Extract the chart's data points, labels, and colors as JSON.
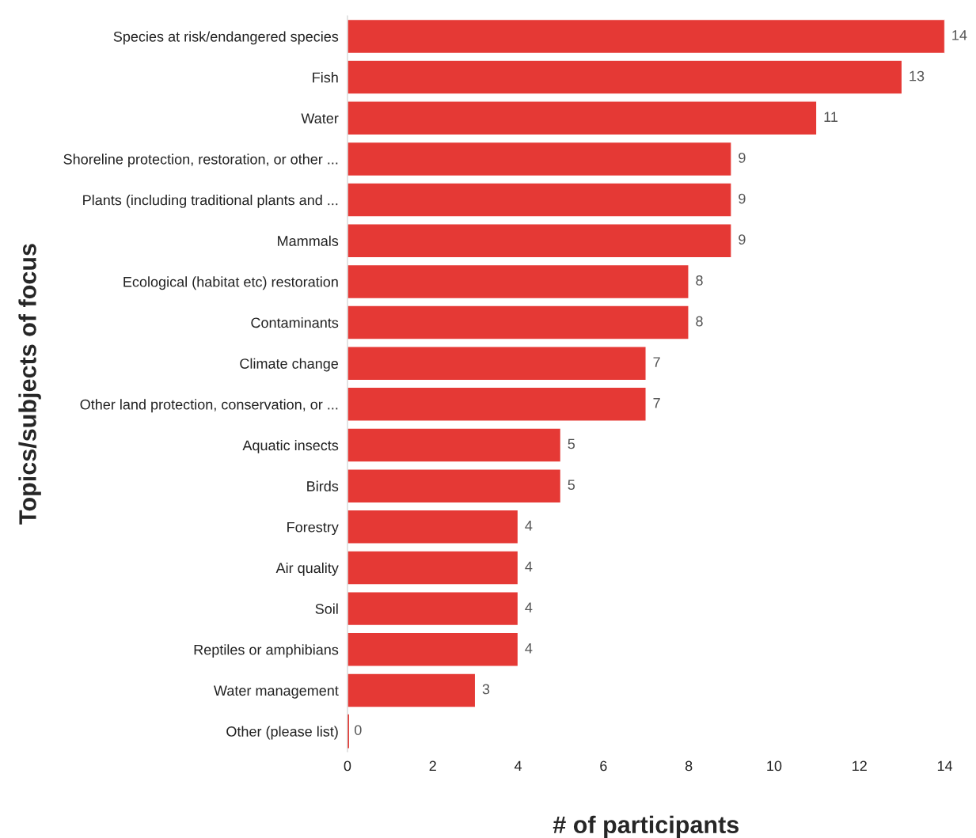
{
  "chart_data": {
    "type": "bar",
    "orientation": "horizontal",
    "xlabel": "# of participants",
    "ylabel": "Topics/subjects of focus",
    "categories": [
      "Species at risk/endangered species",
      "Fish",
      "Water",
      "Shoreline protection, restoration, or other ...",
      "Plants (including traditional plants and ...",
      "Mammals",
      "Ecological (habitat etc) restoration",
      "Contaminants",
      "Climate change",
      "Other land protection, conservation, or ...",
      "Aquatic insects",
      "Birds",
      "Forestry",
      "Air quality",
      "Soil",
      "Reptiles or amphibians",
      "Water management",
      "Other (please list)"
    ],
    "values": [
      14,
      13,
      11,
      9,
      9,
      9,
      8,
      8,
      7,
      7,
      5,
      5,
      4,
      4,
      4,
      4,
      3,
      0
    ],
    "color": "#e53935",
    "xlim": [
      0,
      14
    ],
    "xticks": [
      0,
      2,
      4,
      6,
      8,
      10,
      12,
      14
    ],
    "grid": false,
    "data_labels": true
  }
}
